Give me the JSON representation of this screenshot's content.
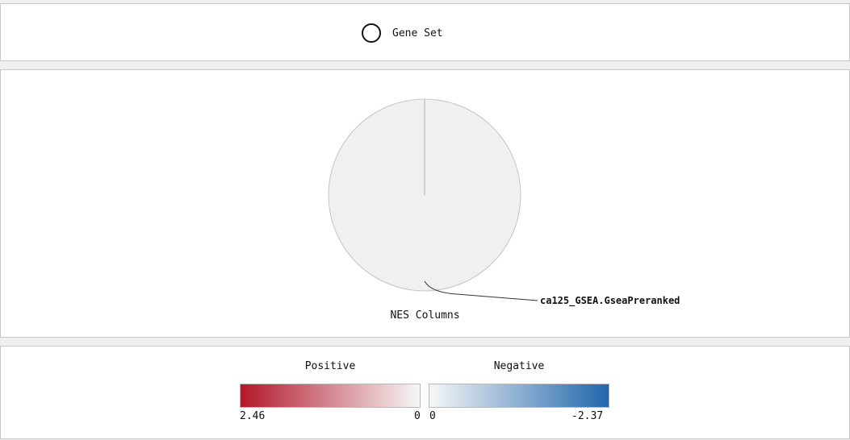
{
  "gene_set_legend": {
    "icon": "ring-icon",
    "label": "Gene Set"
  },
  "chart_data": {
    "type": "pie",
    "title": "NES Columns",
    "slices": [
      {
        "label": "ca125_GSEA.GseaPreranked",
        "value": 1,
        "color": "#f0f0f0"
      }
    ]
  },
  "color_legend": {
    "positive": {
      "title": "Positive",
      "max_label": "2.46",
      "min_label": "0",
      "color_high": "#b2182b",
      "color_low": "#f7f7f7"
    },
    "negative": {
      "title": "Negative",
      "min_label": "0",
      "max_label": "-2.37",
      "color_low": "#f7f7f7",
      "color_high": "#2166ac"
    }
  }
}
